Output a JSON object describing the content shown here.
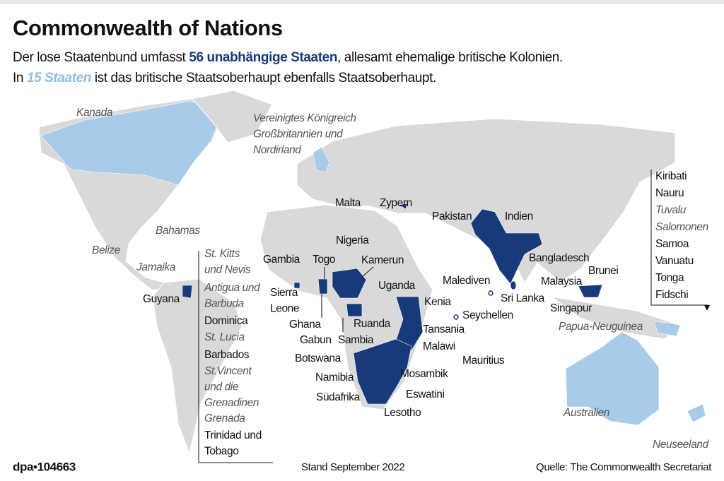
{
  "header": {
    "title": "Commonwealth of Nations",
    "subtitle": [
      [
        "Der lose Staatenbund umfasst ",
        "56 unabhängige Staaten",
        ", allesamt ehemalige britische Kolonien."
      ],
      [
        "In ",
        "15 Staaten",
        " ist das britische Staatsoberhaupt ebenfalls Staatsoberhaupt."
      ]
    ]
  },
  "map": {
    "members": [
      [
        "Malta"
      ],
      [
        "Zypern"
      ],
      [
        "Pakistan"
      ],
      [
        "Indien"
      ],
      [
        "Gambia"
      ],
      [
        "Togo"
      ],
      [
        "Nigeria"
      ],
      [
        "Kamerun"
      ],
      [
        "Bangladesch"
      ],
      [
        "Brunei"
      ],
      [
        "Malaysia"
      ],
      [
        "Malediven"
      ],
      [
        "Uganda"
      ],
      [
        "Sierra",
        "Leone"
      ],
      [
        "Kenia"
      ],
      [
        "Sri Lanka"
      ],
      [
        "Singapur"
      ],
      [
        "Seychellen"
      ],
      [
        "Ghana"
      ],
      [
        "Ruanda"
      ],
      [
        "Tansania"
      ],
      [
        "Gabun"
      ],
      [
        "Sambia"
      ],
      [
        "Malawi"
      ],
      [
        "Botswana"
      ],
      [
        "Mauritius"
      ],
      [
        "Namibia"
      ],
      [
        "Mosambik"
      ],
      [
        "Eswatini"
      ],
      [
        "Südafrika"
      ],
      [
        "Lesotho"
      ],
      [
        "Guyana"
      ],
      [
        "Dominica"
      ],
      [
        "Barbados"
      ],
      [
        "Trinidad und",
        "Tobago"
      ],
      [
        "Kiribati"
      ],
      [
        "Nauru"
      ],
      [
        "Samoa"
      ],
      [
        "Vanuatu"
      ],
      [
        "Tonga"
      ],
      [
        "Fidschi"
      ]
    ],
    "realms": [
      [
        "Kanada"
      ],
      [
        "Vereinigtes Königreich",
        "Großbritannien und",
        "Nordirland"
      ],
      [
        "Bahamas"
      ],
      [
        "Belize"
      ],
      [
        "Jamaika"
      ],
      [
        "St. Kitts",
        "und Nevis"
      ],
      [
        "Antigua und",
        "Barbuda"
      ],
      [
        "St. Lucia"
      ],
      [
        "St.Vincent",
        "und die",
        "Grenadinen"
      ],
      [
        "Grenada"
      ],
      [
        "Papua-Neuguinea"
      ],
      [
        "Australien"
      ],
      [
        "Neuseeland"
      ],
      [
        "Tuvalu"
      ],
      [
        "Salomonen"
      ]
    ]
  },
  "footer": {
    "code": "dpa•104663",
    "date": "Stand September 2022",
    "source": "Quelle: The Commonwealth Secretariat"
  }
}
